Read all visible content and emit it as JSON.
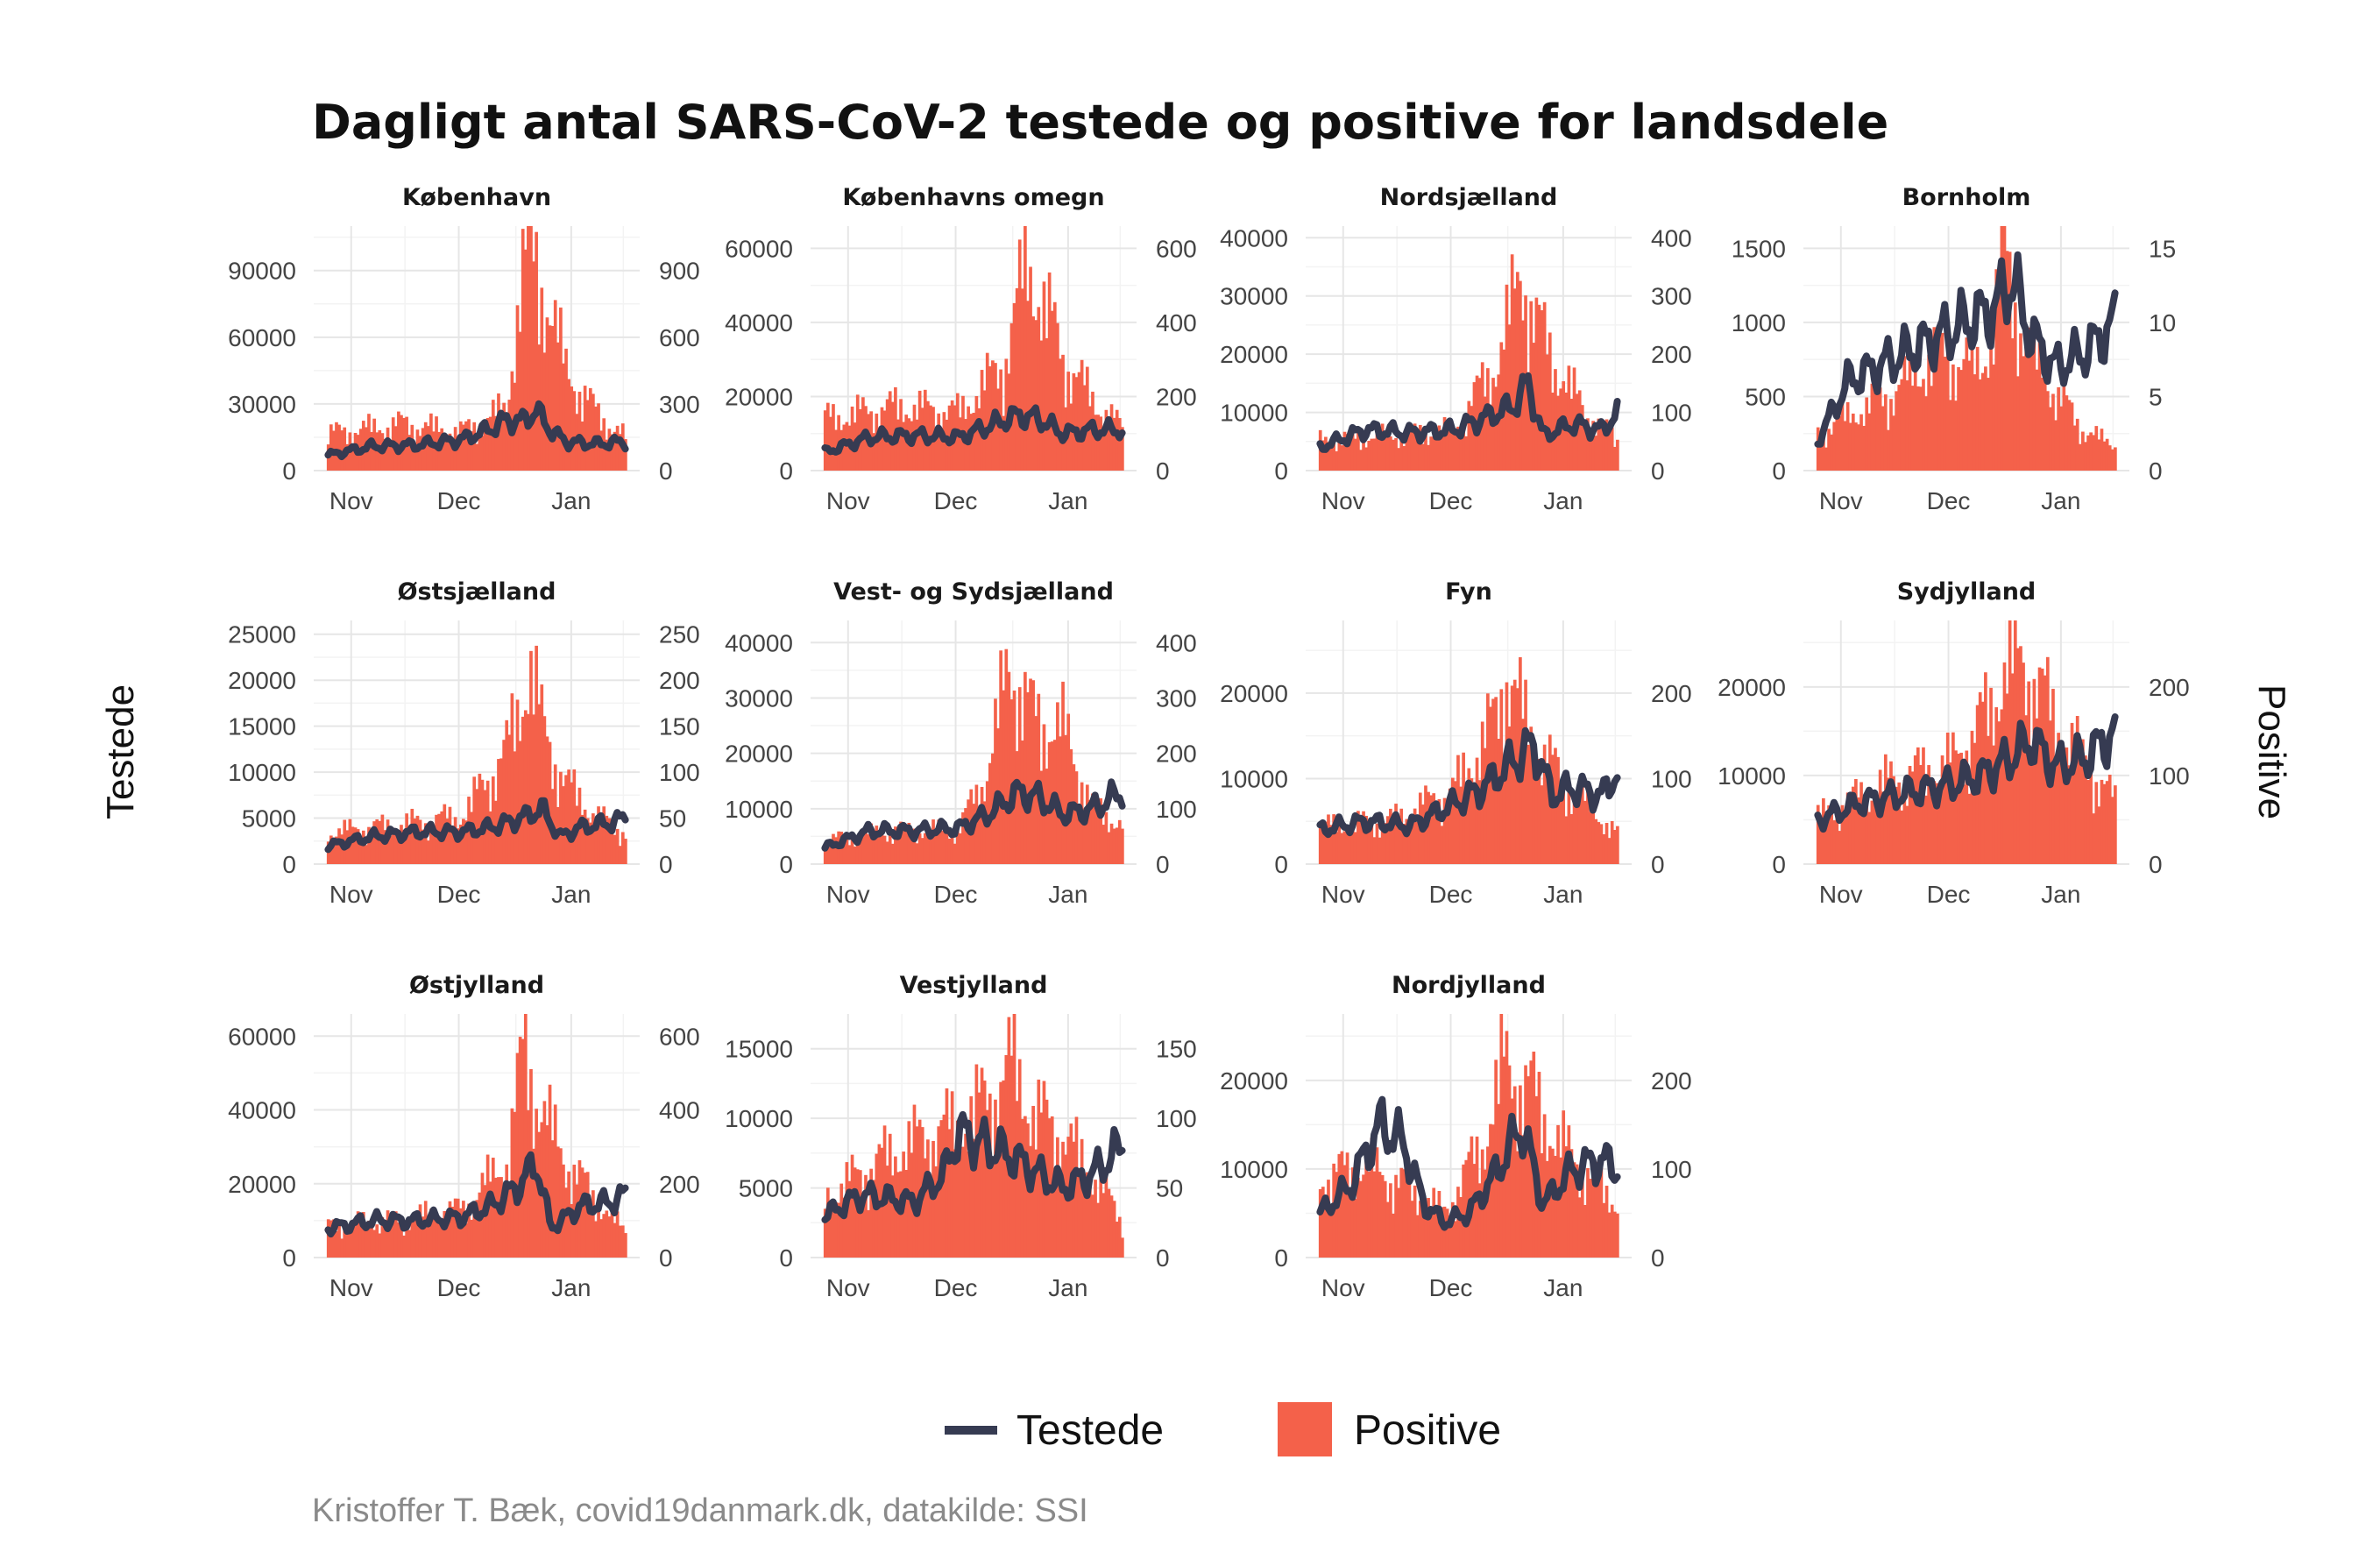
{
  "title": "Dagligt antal SARS-CoV-2 testede og positive for landsdele",
  "left_axis_title": "Testede",
  "right_axis_title": "Positive",
  "caption": "Kristoffer T. Bæk, covid19danmark.dk, datakilde: SSI",
  "legend": [
    {
      "label": "Testede",
      "kind": "line",
      "color": "#363b52"
    },
    {
      "label": "Positive",
      "kind": "bar",
      "color": "#f4614a"
    }
  ],
  "month_ticks": [
    "Nov",
    "Dec",
    "Jan"
  ],
  "chart_data": [
    {
      "type": "bar+line",
      "name": "København",
      "yleft_ticks": [
        0,
        30000,
        60000,
        90000
      ],
      "yright_ticks": [
        0,
        300,
        600,
        900
      ],
      "yleft_max": 110000,
      "positive": [
        [
          0,
          190
        ],
        [
          0.25,
          240
        ],
        [
          0.45,
          200
        ],
        [
          0.6,
          320
        ],
        [
          0.65,
          1020
        ],
        [
          0.7,
          1080
        ],
        [
          0.8,
          520
        ],
        [
          0.9,
          300
        ],
        [
          1,
          170
        ]
      ],
      "testede": [
        [
          0,
          7000
        ],
        [
          0.15,
          11000
        ],
        [
          0.3,
          11500
        ],
        [
          0.45,
          14000
        ],
        [
          0.55,
          19000
        ],
        [
          0.6,
          23000
        ],
        [
          0.65,
          22000
        ],
        [
          0.7,
          27000
        ],
        [
          0.75,
          18000
        ],
        [
          0.8,
          13000
        ],
        [
          0.9,
          12000
        ],
        [
          1,
          13000
        ]
      ]
    },
    {
      "type": "bar+line",
      "name": "Københavns omegn",
      "yleft_ticks": [
        0,
        20000,
        40000,
        60000
      ],
      "yright_ticks": [
        0,
        200,
        400,
        600
      ],
      "yleft_max": 66000,
      "positive": [
        [
          0,
          160
        ],
        [
          0.25,
          200
        ],
        [
          0.45,
          180
        ],
        [
          0.6,
          330
        ],
        [
          0.68,
          640
        ],
        [
          0.72,
          560
        ],
        [
          0.8,
          350
        ],
        [
          0.9,
          220
        ],
        [
          1,
          130
        ]
      ],
      "testede": [
        [
          0,
          5000
        ],
        [
          0.15,
          9000
        ],
        [
          0.3,
          9500
        ],
        [
          0.45,
          9000
        ],
        [
          0.55,
          12000
        ],
        [
          0.65,
          15000
        ],
        [
          0.72,
          14000
        ],
        [
          0.8,
          10000
        ],
        [
          0.9,
          11000
        ],
        [
          1,
          11000
        ]
      ]
    },
    {
      "type": "bar+line",
      "name": "Nordsjælland",
      "yleft_ticks": [
        0,
        10000,
        20000,
        30000,
        40000
      ],
      "yright_ticks": [
        0,
        100,
        200,
        300,
        400
      ],
      "yleft_max": 42000,
      "positive": [
        [
          0,
          60
        ],
        [
          0.25,
          70
        ],
        [
          0.45,
          80
        ],
        [
          0.6,
          220
        ],
        [
          0.68,
          400
        ],
        [
          0.72,
          300
        ],
        [
          0.8,
          200
        ],
        [
          0.9,
          110
        ],
        [
          1,
          60
        ]
      ],
      "testede": [
        [
          0,
          4000
        ],
        [
          0.15,
          7000
        ],
        [
          0.3,
          6500
        ],
        [
          0.45,
          7000
        ],
        [
          0.55,
          9000
        ],
        [
          0.65,
          11000
        ],
        [
          0.7,
          15000
        ],
        [
          0.75,
          6000
        ],
        [
          0.85,
          8000
        ],
        [
          0.95,
          7000
        ],
        [
          1,
          10000
        ]
      ]
    },
    {
      "type": "bar+line",
      "name": "Bornholm",
      "yleft_ticks": [
        0,
        500,
        1000,
        1500
      ],
      "yright_ticks": [
        0,
        5,
        10,
        15
      ],
      "yleft_max": 1650,
      "positive": [
        [
          0,
          3
        ],
        [
          0.25,
          6
        ],
        [
          0.4,
          9
        ],
        [
          0.55,
          8
        ],
        [
          0.63,
          16
        ],
        [
          0.7,
          10
        ],
        [
          0.8,
          6
        ],
        [
          0.9,
          3
        ],
        [
          1,
          2
        ]
      ],
      "testede": [
        [
          0,
          200
        ],
        [
          0.1,
          600
        ],
        [
          0.2,
          700
        ],
        [
          0.3,
          800
        ],
        [
          0.4,
          900
        ],
        [
          0.5,
          1000
        ],
        [
          0.6,
          1100
        ],
        [
          0.65,
          1300
        ],
        [
          0.72,
          900
        ],
        [
          0.8,
          700
        ],
        [
          0.9,
          800
        ],
        [
          1,
          1000
        ]
      ]
    },
    {
      "type": "bar+line",
      "name": "Østsjælland",
      "yleft_ticks": [
        0,
        5000,
        10000,
        15000,
        20000,
        25000
      ],
      "yright_ticks": [
        0,
        50,
        100,
        150,
        200,
        250
      ],
      "yleft_max": 26500,
      "positive": [
        [
          0,
          40
        ],
        [
          0.25,
          50
        ],
        [
          0.45,
          60
        ],
        [
          0.6,
          140
        ],
        [
          0.68,
          250
        ],
        [
          0.72,
          170
        ],
        [
          0.8,
          100
        ],
        [
          0.9,
          60
        ],
        [
          1,
          40
        ]
      ],
      "testede": [
        [
          0,
          2000
        ],
        [
          0.15,
          3000
        ],
        [
          0.3,
          3500
        ],
        [
          0.45,
          3500
        ],
        [
          0.55,
          4000
        ],
        [
          0.65,
          5000
        ],
        [
          0.72,
          6000
        ],
        [
          0.78,
          3000
        ],
        [
          0.85,
          4000
        ],
        [
          0.95,
          4500
        ],
        [
          1,
          5000
        ]
      ]
    },
    {
      "type": "bar+line",
      "name": "Vest- og Sydsjælland",
      "yleft_ticks": [
        0,
        10000,
        20000,
        30000,
        40000
      ],
      "yright_ticks": [
        0,
        100,
        200,
        300,
        400
      ],
      "yleft_max": 44000,
      "positive": [
        [
          0,
          50
        ],
        [
          0.25,
          70
        ],
        [
          0.45,
          70
        ],
        [
          0.55,
          200
        ],
        [
          0.62,
          420
        ],
        [
          0.7,
          300
        ],
        [
          0.8,
          280
        ],
        [
          0.9,
          120
        ],
        [
          1,
          80
        ]
      ],
      "testede": [
        [
          0,
          3000
        ],
        [
          0.15,
          6000
        ],
        [
          0.3,
          6000
        ],
        [
          0.45,
          6500
        ],
        [
          0.55,
          9000
        ],
        [
          0.65,
          13000
        ],
        [
          0.72,
          12000
        ],
        [
          0.8,
          9000
        ],
        [
          0.9,
          10000
        ],
        [
          1,
          13000
        ]
      ]
    },
    {
      "type": "bar+line",
      "name": "Fyn",
      "yleft_ticks": [
        0,
        10000,
        20000
      ],
      "yright_ticks": [
        0,
        100,
        200
      ],
      "yleft_max": 28500,
      "positive": [
        [
          0,
          50
        ],
        [
          0.25,
          60
        ],
        [
          0.45,
          100
        ],
        [
          0.6,
          200
        ],
        [
          0.62,
          270
        ],
        [
          0.7,
          180
        ],
        [
          0.8,
          120
        ],
        [
          0.9,
          80
        ],
        [
          1,
          40
        ]
      ],
      "testede": [
        [
          0,
          4000
        ],
        [
          0.15,
          5000
        ],
        [
          0.3,
          4500
        ],
        [
          0.45,
          7000
        ],
        [
          0.55,
          9000
        ],
        [
          0.65,
          12000
        ],
        [
          0.72,
          14000
        ],
        [
          0.78,
          8000
        ],
        [
          0.85,
          9000
        ],
        [
          0.95,
          8000
        ],
        [
          1,
          11000
        ]
      ]
    },
    {
      "type": "bar+line",
      "name": "Sydjylland",
      "yleft_ticks": [
        0,
        10000,
        20000
      ],
      "yright_ticks": [
        0,
        100,
        200
      ],
      "yleft_max": 27500,
      "positive": [
        [
          0,
          60
        ],
        [
          0.25,
          110
        ],
        [
          0.45,
          130
        ],
        [
          0.58,
          200
        ],
        [
          0.63,
          260
        ],
        [
          0.72,
          250
        ],
        [
          0.8,
          180
        ],
        [
          0.9,
          130
        ],
        [
          1,
          80
        ]
      ],
      "testede": [
        [
          0,
          5000
        ],
        [
          0.15,
          7000
        ],
        [
          0.3,
          8000
        ],
        [
          0.45,
          9000
        ],
        [
          0.55,
          10000
        ],
        [
          0.65,
          12000
        ],
        [
          0.72,
          14000
        ],
        [
          0.8,
          11000
        ],
        [
          0.9,
          12000
        ],
        [
          1,
          15000
        ]
      ]
    },
    {
      "type": "bar+line",
      "name": "Østjylland",
      "yleft_ticks": [
        0,
        20000,
        40000,
        60000
      ],
      "yright_ticks": [
        0,
        200,
        400,
        600
      ],
      "yleft_max": 66000,
      "positive": [
        [
          0,
          100
        ],
        [
          0.25,
          120
        ],
        [
          0.45,
          150
        ],
        [
          0.6,
          300
        ],
        [
          0.66,
          640
        ],
        [
          0.72,
          450
        ],
        [
          0.8,
          300
        ],
        [
          0.9,
          180
        ],
        [
          1,
          80
        ]
      ],
      "testede": [
        [
          0,
          8000
        ],
        [
          0.15,
          10000
        ],
        [
          0.3,
          10000
        ],
        [
          0.45,
          11000
        ],
        [
          0.55,
          14000
        ],
        [
          0.65,
          20000
        ],
        [
          0.7,
          26000
        ],
        [
          0.75,
          8000
        ],
        [
          0.85,
          14000
        ],
        [
          0.95,
          15000
        ],
        [
          1,
          17000
        ]
      ]
    },
    {
      "type": "bar+line",
      "name": "Vestjylland",
      "yleft_ticks": [
        0,
        5000,
        10000,
        15000
      ],
      "yright_ticks": [
        0,
        50,
        100,
        150
      ],
      "yleft_max": 17500,
      "positive": [
        [
          0,
          50
        ],
        [
          0.25,
          90
        ],
        [
          0.45,
          110
        ],
        [
          0.55,
          130
        ],
        [
          0.63,
          160
        ],
        [
          0.7,
          120
        ],
        [
          0.8,
          100
        ],
        [
          0.9,
          70
        ],
        [
          1,
          30
        ]
      ],
      "testede": [
        [
          0,
          3000
        ],
        [
          0.12,
          4500
        ],
        [
          0.3,
          4000
        ],
        [
          0.4,
          6000
        ],
        [
          0.45,
          9000
        ],
        [
          0.55,
          8000
        ],
        [
          0.65,
          7000
        ],
        [
          0.72,
          6000
        ],
        [
          0.8,
          5000
        ],
        [
          0.9,
          6000
        ],
        [
          1,
          8000
        ]
      ]
    },
    {
      "type": "bar+line",
      "name": "Nordjylland",
      "yleft_ticks": [
        0,
        10000,
        20000
      ],
      "yright_ticks": [
        0,
        100,
        200
      ],
      "yleft_max": 27500,
      "positive": [
        [
          0,
          100
        ],
        [
          0.15,
          120
        ],
        [
          0.3,
          90
        ],
        [
          0.42,
          60
        ],
        [
          0.55,
          150
        ],
        [
          0.62,
          250
        ],
        [
          0.7,
          220
        ],
        [
          0.8,
          150
        ],
        [
          0.9,
          110
        ],
        [
          1,
          70
        ]
      ],
      "testede": [
        [
          0,
          5000
        ],
        [
          0.1,
          8000
        ],
        [
          0.2,
          15000
        ],
        [
          0.28,
          13000
        ],
        [
          0.35,
          6000
        ],
        [
          0.42,
          4000
        ],
        [
          0.5,
          5000
        ],
        [
          0.6,
          10000
        ],
        [
          0.68,
          15000
        ],
        [
          0.75,
          6000
        ],
        [
          0.85,
          10000
        ],
        [
          0.95,
          11000
        ],
        [
          1,
          10000
        ]
      ]
    }
  ]
}
